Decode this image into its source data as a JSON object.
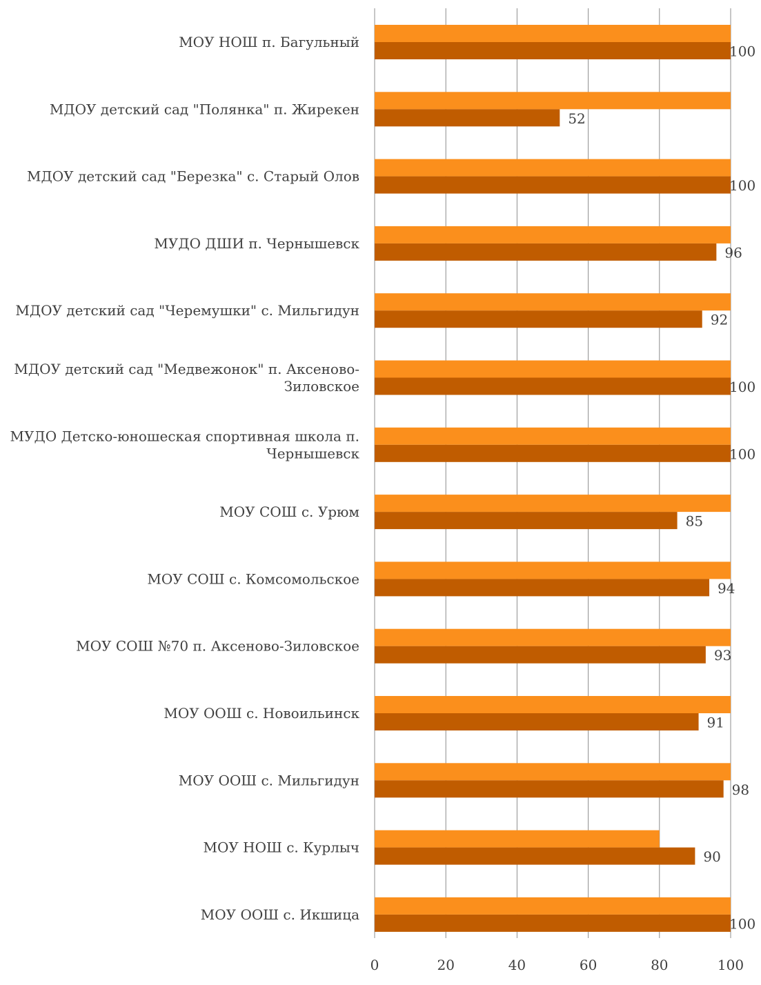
{
  "chart_data": {
    "type": "bar",
    "orientation": "horizontal",
    "categories": [
      "МОУ НОШ п. Багульный",
      "МДОУ детский сад \"Полянка\" п. Жирекен",
      "МДОУ детский сад \"Березка\"  с. Старый Олов",
      "МУДО ДШИ п. Чернышевск",
      "МДОУ  детский сад \"Черемушки\" с. Мильгидун",
      "МДОУ детский сад \"Медвежонок\"  п. Аксеново-Зиловское",
      "МУДО Детско-юношеская спортивная школа п. Чернышевск",
      "МОУ СОШ с. Урюм",
      "МОУ СОШ с. Комсомольское",
      "МОУ СОШ №70 п. Аксеново-Зиловское",
      "МОУ ООШ с. Новоильинск",
      "МОУ ООШ с. Мильгидун",
      "МОУ НОШ с. Курлыч",
      "МОУ ООШ с. Икшица"
    ],
    "category_lines": [
      [
        "МОУ НОШ п. Багульный"
      ],
      [
        "МДОУ детский сад \"Полянка\" п. Жирекен"
      ],
      [
        "МДОУ детский сад \"Березка\"  с. Старый Олов"
      ],
      [
        "МУДО ДШИ п. Чернышевск"
      ],
      [
        "МДОУ  детский сад \"Черемушки\" с. Мильгидун"
      ],
      [
        "МДОУ детский сад \"Медвежонок\"  п. Аксеново-",
        "Зиловское"
      ],
      [
        "МУДО Детско-юношеская спортивная школа п.",
        "Чернышевск"
      ],
      [
        "МОУ СОШ с. Урюм"
      ],
      [
        "МОУ СОШ с. Комсомольское"
      ],
      [
        "МОУ СОШ №70 п. Аксеново-Зиловское"
      ],
      [
        "МОУ ООШ с. Новоильинск"
      ],
      [
        "МОУ ООШ с. Мильгидун"
      ],
      [
        "МОУ НОШ с. Курлыч"
      ],
      [
        "МОУ ООШ с. Икшица"
      ]
    ],
    "series": [
      {
        "color": "#fb8f1c",
        "values": [
          100,
          100,
          100,
          100,
          100,
          100,
          100,
          100,
          100,
          100,
          100,
          100,
          80,
          100
        ],
        "show_labels": false
      },
      {
        "color": "#c05c00",
        "values": [
          100,
          52,
          100,
          96,
          92,
          100,
          100,
          85,
          94,
          93,
          91,
          98,
          90,
          100
        ],
        "show_labels": true
      }
    ],
    "xlim": [
      0,
      100
    ],
    "xticks": [
      0,
      20,
      40,
      60,
      80,
      100
    ],
    "grid": true,
    "legend": "none",
    "title": "",
    "xlabel": "",
    "ylabel": ""
  }
}
